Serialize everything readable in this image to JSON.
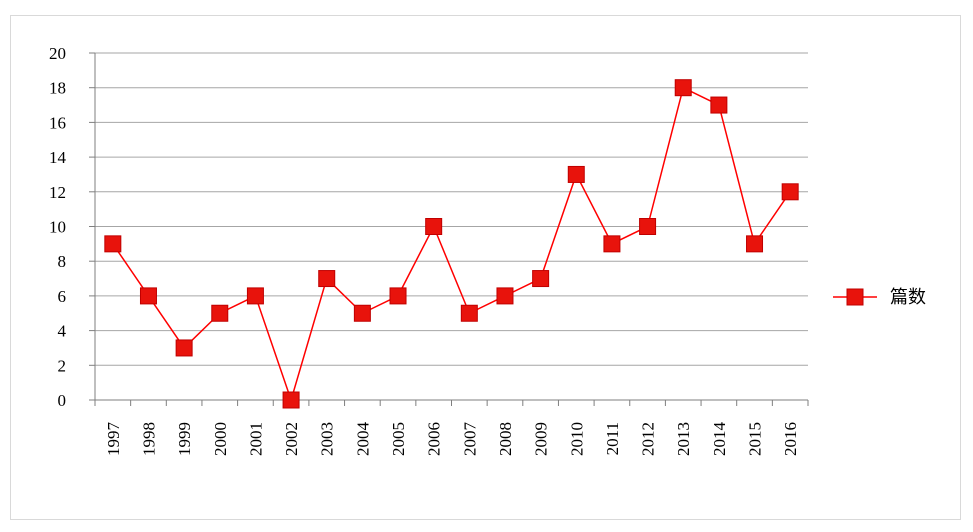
{
  "chart_data": {
    "type": "line",
    "title": "",
    "xlabel": "",
    "ylabel": "",
    "categories": [
      "1997",
      "1998",
      "1999",
      "2000",
      "2001",
      "2002",
      "2003",
      "2004",
      "2005",
      "2006",
      "2007",
      "2008",
      "2009",
      "2010",
      "2011",
      "2012",
      "2013",
      "2014",
      "2015",
      "2016"
    ],
    "series": [
      {
        "name": "篇数",
        "values": [
          9,
          6,
          3,
          5,
          6,
          0,
          7,
          5,
          6,
          10,
          5,
          6,
          7,
          13,
          9,
          10,
          18,
          17,
          9,
          12
        ],
        "color": "#ff0000",
        "marker": "square"
      }
    ],
    "ylim": [
      0,
      20
    ],
    "yticks": [
      0,
      2,
      4,
      6,
      8,
      10,
      12,
      14,
      16,
      18,
      20
    ],
    "grid": "horizontal",
    "legend_position": "right"
  }
}
